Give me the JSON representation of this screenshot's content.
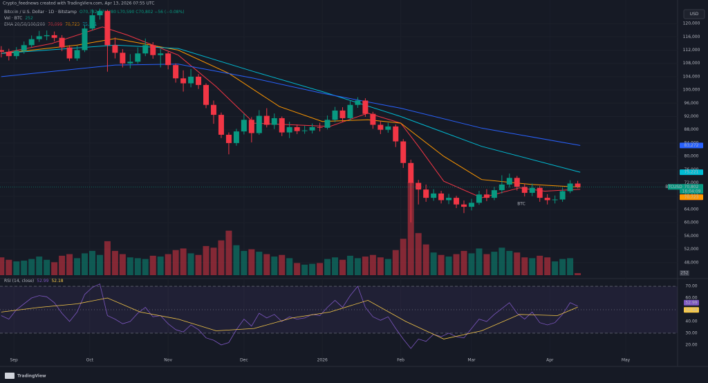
{
  "ui": {
    "created": "Crypto_feednews created with TradingView.com, Apr 13, 2026 07:55 UTC",
    "instrument": "Bitcoin / U.S. Dollar · 1D · Bitstamp",
    "ohlc": "O70,742 H71,280 L70,590 C70,802 −56 (−0.08%)",
    "currency": "USD",
    "brand": "TradingView"
  },
  "chart_data": {
    "type": "candlestick",
    "symbol": "BTCUSD",
    "annotation": "BTC",
    "countdown": "16:04:09",
    "up_color": "#089981",
    "down_color": "#f23645",
    "xlim": [
      -0.5,
      267.5
    ],
    "xticks": [
      {
        "value": 5,
        "label": "Sep"
      },
      {
        "value": 35,
        "label": "Oct"
      },
      {
        "value": 66,
        "label": "Nov"
      },
      {
        "value": 96,
        "label": "Dec"
      },
      {
        "value": 127,
        "label": "2026"
      },
      {
        "value": 158,
        "label": "Feb"
      },
      {
        "value": 186,
        "label": "Mar"
      },
      {
        "value": 217,
        "label": "Apr"
      },
      {
        "value": 247,
        "label": "May"
      }
    ],
    "ylim": [
      44200,
      124600
    ],
    "yticks": [
      {
        "value": 48000,
        "label": "48,000"
      },
      {
        "value": 52000,
        "label": "52,000"
      },
      {
        "value": 56000,
        "label": "56,000"
      },
      {
        "value": 60000,
        "label": "60,000"
      },
      {
        "value": 64000,
        "label": "64,000"
      },
      {
        "value": 68000,
        "label": "68,000"
      },
      {
        "value": 72000,
        "label": "72,000"
      },
      {
        "value": 76000,
        "label": "76,000"
      },
      {
        "value": 80000,
        "label": "80,000"
      },
      {
        "value": 84000,
        "label": "84,000"
      },
      {
        "value": 88000,
        "label": "88,000"
      },
      {
        "value": 92000,
        "label": "92,000"
      },
      {
        "value": 96000,
        "label": "96,000"
      },
      {
        "value": 100000,
        "label": "100,000"
      },
      {
        "value": 104000,
        "label": "104,000"
      },
      {
        "value": 108000,
        "label": "108,000"
      },
      {
        "value": 112000,
        "label": "112,000"
      },
      {
        "value": 116000,
        "label": "116,000"
      },
      {
        "value": 120000,
        "label": "120,000"
      }
    ],
    "x": [
      0,
      3,
      6,
      9,
      12,
      15,
      18,
      21,
      24,
      27,
      30,
      33,
      36,
      39,
      42,
      45,
      48,
      51,
      54,
      57,
      60,
      63,
      66,
      69,
      72,
      75,
      78,
      81,
      84,
      87,
      90,
      93,
      96,
      99,
      102,
      105,
      108,
      111,
      114,
      117,
      120,
      123,
      126,
      129,
      132,
      135,
      138,
      141,
      144,
      147,
      150,
      153,
      156,
      159,
      162,
      165,
      168,
      171,
      174,
      177,
      180,
      183,
      186,
      189,
      192,
      195,
      198,
      201,
      204,
      207,
      210,
      213,
      216,
      219,
      222,
      225,
      228
    ],
    "open": [
      112000,
      111500,
      110200,
      111800,
      113500,
      115300,
      116200,
      116500,
      115700,
      112800,
      109500,
      112000,
      118500,
      122500,
      123800,
      113500,
      111200,
      108000,
      108500,
      111000,
      113500,
      110500,
      111000,
      107500,
      103500,
      102000,
      104000,
      101500,
      95500,
      92500,
      86500,
      84000,
      87500,
      91000,
      87000,
      92200,
      89500,
      91500,
      87200,
      88800,
      87600,
      87800,
      88800,
      88600,
      91000,
      93800,
      91500,
      95500,
      96800,
      92800,
      89500,
      88000,
      89000,
      84500,
      78000,
      72000,
      70000,
      67500,
      68800,
      66800,
      67500,
      65500,
      64800,
      66000,
      68500,
      67500,
      69800,
      71500,
      73500,
      70800,
      69000,
      70500,
      67500,
      66800,
      67000,
      69500,
      71800
    ],
    "high": [
      113200,
      112400,
      112900,
      114600,
      116400,
      117800,
      117900,
      117600,
      116500,
      113500,
      113300,
      119600,
      124300,
      124500,
      124200,
      115800,
      112300,
      110800,
      112800,
      115500,
      114400,
      112300,
      111500,
      108000,
      105900,
      106300,
      104800,
      102000,
      96800,
      93200,
      87200,
      88300,
      92800,
      91800,
      93900,
      94500,
      92900,
      92000,
      90400,
      89600,
      89200,
      89900,
      90100,
      92300,
      94900,
      94800,
      96900,
      97800,
      97500,
      93400,
      90700,
      90100,
      89600,
      85200,
      79000,
      72900,
      71500,
      70100,
      69600,
      68700,
      68100,
      66700,
      67200,
      69600,
      70100,
      70800,
      74300,
      74800,
      74100,
      71800,
      71800,
      71100,
      68600,
      68200,
      70600,
      72800,
      72600
    ],
    "low": [
      109800,
      108900,
      109300,
      110900,
      112800,
      114500,
      115000,
      114600,
      111700,
      108700,
      108800,
      111400,
      117900,
      121200,
      105500,
      109500,
      106800,
      106500,
      107900,
      110200,
      109400,
      106800,
      106200,
      102200,
      99500,
      100800,
      100300,
      94500,
      89800,
      85500,
      80600,
      83200,
      86600,
      84200,
      86500,
      88700,
      88200,
      86100,
      85500,
      86700,
      86800,
      86900,
      87500,
      88100,
      90300,
      90400,
      90800,
      94600,
      91900,
      88300,
      86700,
      87100,
      82800,
      76500,
      60100,
      65500,
      66300,
      66600,
      65800,
      65600,
      64400,
      62900,
      63700,
      65400,
      66500,
      66800,
      68800,
      70600,
      69700,
      67900,
      68000,
      66300,
      65500,
      65800,
      66300,
      68900,
      70400
    ],
    "close": [
      111500,
      110200,
      111800,
      113500,
      115300,
      116200,
      116500,
      115700,
      112800,
      109500,
      112000,
      118500,
      122500,
      123800,
      113500,
      111200,
      108000,
      108500,
      111000,
      113500,
      110500,
      111000,
      107500,
      103500,
      102000,
      104000,
      101500,
      95500,
      92500,
      86500,
      84000,
      87500,
      91000,
      87000,
      92200,
      89500,
      91500,
      87200,
      88800,
      87600,
      87800,
      88800,
      88600,
      91000,
      93800,
      91500,
      95500,
      96800,
      92800,
      89500,
      88000,
      89000,
      84500,
      78000,
      72000,
      70000,
      67500,
      68800,
      66800,
      67500,
      65500,
      64800,
      66000,
      68500,
      67500,
      69800,
      71500,
      73500,
      70800,
      69000,
      70500,
      67500,
      66800,
      67000,
      69500,
      71800,
      70800
    ],
    "close_labels": [
      null,
      null,
      null,
      null,
      null,
      null,
      null,
      null,
      null,
      null,
      null,
      null,
      null,
      null,
      null,
      null,
      null,
      null,
      null,
      null,
      null,
      null,
      null,
      null,
      null,
      null,
      null,
      null,
      null,
      null,
      null,
      null,
      null,
      null,
      null,
      null,
      null,
      null,
      null,
      null,
      null,
      null,
      null,
      null,
      null,
      null,
      null,
      null,
      null,
      null,
      null,
      null,
      null,
      null,
      null,
      null,
      null,
      null,
      null,
      null,
      null,
      null,
      null,
      null,
      null,
      null,
      null,
      null,
      null,
      null,
      null,
      null,
      null,
      null,
      null,
      null,
      "70,802"
    ],
    "volume": {
      "name": "Vol · BTC",
      "ylim": [
        0,
        33000
      ],
      "values": [
        2200,
        1900,
        1700,
        1800,
        2000,
        2300,
        1900,
        1600,
        2400,
        2600,
        2100,
        2700,
        3000,
        2500,
        4200,
        3000,
        2600,
        2200,
        2100,
        2000,
        2400,
        2300,
        2600,
        3100,
        3300,
        2700,
        2500,
        3600,
        3400,
        4300,
        5500,
        3700,
        3000,
        3200,
        2900,
        2600,
        2300,
        2500,
        2100,
        1500,
        1300,
        1400,
        1500,
        2000,
        2200,
        1900,
        2400,
        2100,
        2300,
        2500,
        2200,
        2000,
        3100,
        4500,
        11500,
        5200,
        3800,
        2800,
        2500,
        2300,
        2600,
        3000,
        2700,
        3300,
        2600,
        2900,
        3400,
        3000,
        2800,
        2200,
        2100,
        2400,
        2200,
        1700,
        2000,
        2100,
        252
      ]
    },
    "ema": {
      "name": "EMA 20/50/100/200",
      "series": [
        {
          "color": "#f23645",
          "x": [
            0,
            20,
            40,
            50,
            70,
            85,
            100,
            115,
            130,
            145,
            158,
            165,
            175,
            190,
            205,
            215,
            229
          ],
          "values": [
            111000,
            114000,
            119000,
            116500,
            110500,
            101000,
            90000,
            89500,
            89000,
            93000,
            90000,
            83000,
            72500,
            67500,
            70500,
            69500,
            70099
          ],
          "value_labels": [
            null,
            null,
            null,
            null,
            null,
            null,
            null,
            null,
            null,
            null,
            null,
            null,
            null,
            null,
            null,
            null,
            "70,099"
          ]
        },
        {
          "color": "#ff9800",
          "x": [
            0,
            30,
            45,
            70,
            90,
            110,
            127,
            145,
            158,
            175,
            190,
            210,
            229
          ],
          "values": [
            111000,
            113500,
            115500,
            112000,
            105000,
            95000,
            90500,
            91000,
            90000,
            80000,
            73000,
            71500,
            70723
          ],
          "value_labels": [
            null,
            null,
            null,
            null,
            null,
            null,
            null,
            null,
            null,
            null,
            null,
            null,
            "70,723"
          ]
        },
        {
          "color": "#00bcd4",
          "x": [
            0,
            45,
            70,
            100,
            127,
            158,
            190,
            229
          ],
          "values": [
            111000,
            113500,
            112500,
            105500,
            99500,
            92000,
            83000,
            75221
          ],
          "value_labels": [
            null,
            null,
            null,
            null,
            null,
            null,
            null,
            "75,221"
          ]
        },
        {
          "color": "#2962ff",
          "x": [
            0,
            45,
            70,
            100,
            127,
            158,
            190,
            229
          ],
          "values": [
            104000,
            107500,
            107800,
            103500,
            99000,
            94500,
            88500,
            83272
          ],
          "value_labels": [
            null,
            null,
            null,
            null,
            null,
            null,
            null,
            "83,272"
          ]
        }
      ]
    },
    "rsi": {
      "name": "RSI (14, close)",
      "ylim": [
        4.6,
        72.4
      ],
      "levels": [
        70,
        50,
        30
      ],
      "yticks": [
        {
          "value": 20,
          "label": "20.00"
        },
        {
          "value": 30,
          "label": "30.00"
        },
        {
          "value": 40,
          "label": "40.00"
        },
        {
          "value": 50,
          "label": "50.00"
        },
        {
          "value": 60,
          "label": "60.00"
        },
        {
          "value": 70,
          "label": "70.00"
        }
      ],
      "series": [
        {
          "color": "#7e57c2",
          "x": [
            0,
            3,
            6,
            9,
            12,
            15,
            18,
            21,
            24,
            27,
            30,
            33,
            36,
            39,
            42,
            45,
            48,
            51,
            54,
            57,
            60,
            63,
            66,
            69,
            72,
            75,
            78,
            81,
            84,
            87,
            90,
            93,
            96,
            99,
            102,
            105,
            108,
            111,
            114,
            117,
            120,
            123,
            126,
            129,
            132,
            135,
            138,
            141,
            144,
            147,
            150,
            153,
            156,
            159,
            162,
            165,
            168,
            171,
            174,
            177,
            180,
            183,
            186,
            189,
            192,
            195,
            198,
            201,
            204,
            207,
            210,
            213,
            216,
            219,
            222,
            225,
            228
          ],
          "values": [
            45,
            42,
            50,
            55,
            60,
            62,
            61,
            56,
            47,
            40,
            48,
            63,
            69,
            72,
            45,
            42,
            38,
            40,
            47,
            52,
            44,
            45,
            38,
            33,
            31,
            37,
            33,
            26,
            24,
            20,
            22,
            33,
            42,
            36,
            47,
            43,
            46,
            40,
            44,
            42,
            43,
            46,
            45,
            52,
            58,
            52,
            62,
            70,
            52,
            44,
            41,
            44,
            34,
            25,
            17,
            25,
            23,
            29,
            27,
            30,
            27,
            26,
            34,
            42,
            40,
            46,
            51,
            56,
            47,
            42,
            48,
            39,
            37,
            39,
            46,
            56,
            52.99
          ]
        },
        {
          "color": "#f7c948",
          "x": [
            0,
            15,
            30,
            42,
            55,
            70,
            85,
            100,
            115,
            130,
            145,
            160,
            175,
            190,
            205,
            220,
            228
          ],
          "values": [
            48,
            52,
            55,
            60,
            48,
            42,
            32,
            34,
            43,
            48,
            58,
            40,
            25,
            32,
            46,
            45,
            52.18
          ]
        }
      ]
    }
  }
}
